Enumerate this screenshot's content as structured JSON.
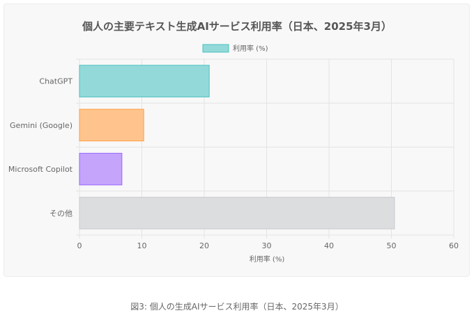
{
  "chart_data": {
    "type": "bar",
    "orientation": "horizontal",
    "title": "個人の主要テキスト生成AIサービス利用率（日本、2025年3月）",
    "categories": [
      "ChatGPT",
      "Gemini (Google)",
      "Microsoft Copilot",
      "その他"
    ],
    "series": [
      {
        "name": "利用率 (%)",
        "values": [
          20.8,
          10.3,
          6.8,
          50.5
        ],
        "colors": [
          "#94d9d9",
          "#ffc48e",
          "#c5a4fb",
          "#dcdddf"
        ],
        "border_colors": [
          "#4bc0c0",
          "#ff9f40",
          "#9966ff",
          "#c9cbcf"
        ]
      }
    ],
    "xlabel": "利用率 (%)",
    "ylabel": "",
    "xlim": [
      0,
      60
    ],
    "xticks": [
      0,
      10,
      20,
      30,
      40,
      50,
      60
    ],
    "grid": true,
    "legend_position": "top",
    "legend_color": "#94d9d9",
    "legend_border": "#4bc0c0"
  },
  "caption": "図3: 個人の生成AIサービス利用率（日本、2025年3月）"
}
